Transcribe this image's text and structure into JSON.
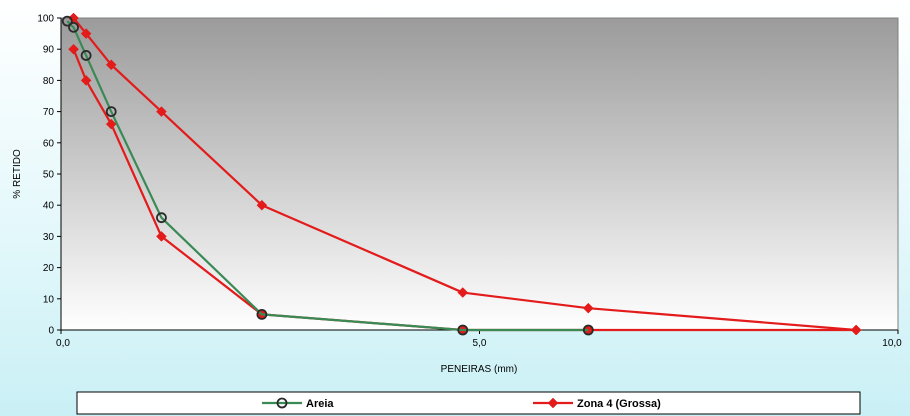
{
  "chart_data": {
    "type": "line",
    "title": "",
    "xlabel": "PENEIRAS (mm)",
    "ylabel": "% RETIDO",
    "xlim": [
      0,
      10
    ],
    "ylim": [
      0,
      100
    ],
    "x_ticks": [
      0,
      5,
      10
    ],
    "x_tick_labels": [
      "0,0",
      "5,0",
      "10,0"
    ],
    "y_ticks": [
      0,
      10,
      20,
      30,
      40,
      50,
      60,
      70,
      80,
      90,
      100
    ],
    "grid": false,
    "legend_position": "bottom",
    "series": [
      {
        "name": "Areia",
        "color": "#3a8a55",
        "marker": "open-circle",
        "points": [
          [
            0.075,
            99
          ],
          [
            0.15,
            97
          ],
          [
            0.3,
            88
          ],
          [
            0.6,
            70
          ],
          [
            1.2,
            36
          ],
          [
            2.4,
            5
          ],
          [
            4.8,
            0
          ],
          [
            6.3,
            0
          ]
        ]
      },
      {
        "name": "Zona 4 (Grossa)",
        "color": "#e31b1b",
        "marker": "diamond",
        "points": [
          [
            0.15,
            100
          ],
          [
            0.3,
            95
          ],
          [
            0.6,
            85
          ],
          [
            1.2,
            70
          ],
          [
            2.4,
            40
          ],
          [
            4.8,
            12
          ],
          [
            6.3,
            7
          ],
          [
            9.5,
            0
          ]
        ]
      },
      {
        "name": "",
        "color": "#e31b1b",
        "marker": "diamond",
        "points": [
          [
            0.15,
            90
          ],
          [
            0.3,
            80
          ],
          [
            0.6,
            66
          ],
          [
            1.2,
            30
          ],
          [
            2.4,
            5
          ],
          [
            4.8,
            0
          ],
          [
            6.3,
            0
          ],
          [
            9.5,
            0
          ]
        ]
      }
    ]
  }
}
